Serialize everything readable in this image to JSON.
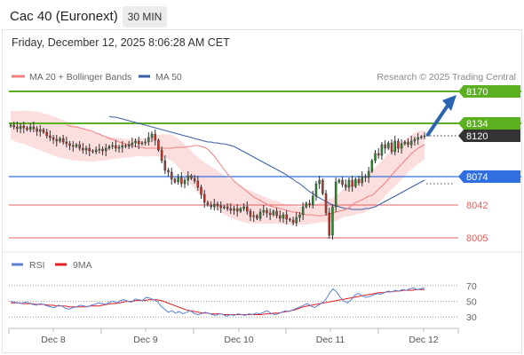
{
  "header": {
    "instrument": "Cac 40 (Euronext)",
    "timeframe": "30 MIN",
    "timestamp": "Friday, December 12, 2025 8:06:28 AM CET"
  },
  "legend": {
    "ma20_bb": "MA 20 + Bollinger Bands",
    "ma50": "MA 50",
    "ma20_color": "#f08080",
    "ma50_color": "#3b5fa6",
    "rsi": "RSI",
    "rsi_ma": "9MA",
    "rsi_color": "#5b7fd6",
    "rsi_ma_color": "#e02020"
  },
  "credit": "Research © 2025 Trading Central",
  "colors": {
    "resistance": "#5ab01e",
    "support": "#e06060",
    "pivot": "#2f6fe0",
    "current": "#333333",
    "arrow": "#2d64b0",
    "candle_up": "#2e8b2e",
    "candle_down": "#c0392b",
    "band_fill": "#fbd3d3"
  },
  "chart_data": [
    {
      "type": "candlestick",
      "x_ticks": [
        "Dec 8",
        "Dec 9",
        "Dec 10",
        "Dec 11",
        "Dec 12"
      ],
      "levels": [
        {
          "value": 8170,
          "label": "8170",
          "kind": "resistance"
        },
        {
          "value": 8134,
          "label": "8134",
          "kind": "resistance"
        },
        {
          "value": 8120,
          "label": "8120",
          "kind": "current"
        },
        {
          "value": 8074,
          "label": "8074",
          "kind": "pivot"
        },
        {
          "value": 8042,
          "label": "8042",
          "kind": "support"
        },
        {
          "value": 8005,
          "label": "8005",
          "kind": "support"
        }
      ],
      "ylim": [
        7998,
        8175
      ],
      "closes": [
        8132,
        8130,
        8128,
        8131,
        8129,
        8127,
        8130,
        8128,
        8125,
        8127,
        8124,
        8120,
        8118,
        8116,
        8114,
        8117,
        8113,
        8111,
        8109,
        8108,
        8110,
        8106,
        8104,
        8106,
        8103,
        8102,
        8104,
        8105,
        8103,
        8106,
        8108,
        8109,
        8106,
        8107,
        8109,
        8108,
        8110,
        8112,
        8114,
        8111,
        8112,
        8113,
        8118,
        8122,
        8115,
        8104,
        8092,
        8081,
        8079,
        8071,
        8068,
        8073,
        8066,
        8070,
        8075,
        8072,
        8069,
        8062,
        8054,
        8045,
        8042,
        8040,
        8043,
        8041,
        8039,
        8040,
        8038,
        8036,
        8038,
        8035,
        8038,
        8040,
        8035,
        8029,
        8030,
        8027,
        8034,
        8036,
        8033,
        8031,
        8035,
        8030,
        8027,
        8031,
        8026,
        8025,
        8022,
        8028,
        8031,
        8040,
        8044,
        8042,
        8052,
        8066,
        8070,
        8055,
        8033,
        8008,
        8040,
        8068,
        8070,
        8065,
        8062,
        8070,
        8063,
        8071,
        8067,
        8074,
        8073,
        8080,
        8092,
        8100,
        8098,
        8110,
        8106,
        8112,
        8102,
        8114,
        8106,
        8111,
        8113,
        8110,
        8114,
        8116,
        8118,
        8119,
        8120
      ],
      "ma20": [
        8132,
        8131,
        8130,
        8130,
        8129,
        8128,
        8127,
        8126,
        8125,
        8123,
        8122,
        8120,
        8119,
        8117,
        8116,
        8115,
        8113,
        8112,
        8111,
        8110,
        8109,
        8108,
        8107,
        8107,
        8106,
        8106,
        8106,
        8106,
        8106,
        8106,
        8106,
        8106,
        8106,
        8107,
        8107,
        8107,
        8107,
        8108,
        8108,
        8109,
        8109,
        8108,
        8107,
        8105,
        8101,
        8097,
        8092,
        8087,
        8082,
        8077,
        8073,
        8069,
        8066,
        8063,
        8060,
        8057,
        8054,
        8051,
        8049,
        8047,
        8045,
        8043,
        8041,
        8040,
        8039,
        8038,
        8037,
        8036,
        8035,
        8034,
        8034,
        8033,
        8032,
        8031,
        8031,
        8031,
        8030,
        8030,
        8030,
        8031,
        8032,
        8033,
        8034,
        8035,
        8036,
        8037,
        8039,
        8042,
        8045,
        8046,
        8048,
        8050,
        8052,
        8053,
        8056,
        8060,
        8063,
        8067,
        8071,
        8076,
        8080,
        8084,
        8088,
        8092,
        8096,
        8100,
        8103,
        8106,
        8108,
        8110
      ],
      "ma50": [
        8142,
        8141,
        8141,
        8140,
        8139,
        8138,
        8137,
        8136,
        8135,
        8134,
        8133,
        8132,
        8131,
        8130,
        8129,
        8128,
        8127,
        8126,
        8125,
        8124,
        8123,
        8122,
        8121,
        8120,
        8119,
        8118,
        8117,
        8116,
        8115,
        8114,
        8113,
        8113,
        8112,
        8112,
        8111,
        8111,
        8110,
        8109,
        8108,
        8106,
        8104,
        8102,
        8100,
        8098,
        8096,
        8094,
        8092,
        8090,
        8088,
        8086,
        8084,
        8082,
        8080,
        8078,
        8076,
        8073,
        8071,
        8068,
        8066,
        8063,
        8060,
        8057,
        8055,
        8052,
        8050,
        8048,
        8046,
        8044,
        8042,
        8041,
        8040,
        8039,
        8038,
        8038,
        8037,
        8037,
        8037,
        8037,
        8038,
        8038,
        8039,
        8040,
        8042,
        8044,
        8046,
        8048,
        8050,
        8052,
        8054,
        8056,
        8058,
        8060,
        8062,
        8064,
        8066,
        8068,
        8070
      ],
      "rsi_ylim": [
        20,
        80
      ],
      "rsi_levels": [
        70,
        50,
        30
      ],
      "rsi": [
        50,
        49,
        48,
        47,
        49,
        48,
        46,
        45,
        47,
        46,
        44,
        43,
        42,
        45,
        44,
        41,
        40,
        42,
        43,
        45,
        44,
        43,
        45,
        46,
        48,
        47,
        46,
        49,
        50,
        48,
        51,
        52,
        50,
        49,
        53,
        52,
        51,
        55,
        54,
        52,
        50,
        44,
        40,
        36,
        38,
        35,
        37,
        34,
        36,
        38,
        35,
        33,
        34,
        36,
        35,
        33,
        32,
        34,
        33,
        31,
        33,
        32,
        34,
        33,
        32,
        34,
        33,
        35,
        34,
        36,
        38,
        35,
        33,
        34,
        36,
        38,
        37,
        39,
        41,
        43,
        45,
        47,
        44,
        42,
        45,
        48,
        52,
        60,
        66,
        62,
        55,
        50,
        48,
        52,
        58,
        60,
        57,
        55,
        56,
        58,
        60,
        59,
        61,
        63,
        62,
        64,
        63,
        65,
        64,
        66,
        67,
        65,
        66,
        67
      ],
      "rsi_ma": [
        48,
        48,
        48,
        47,
        47,
        47,
        46,
        46,
        46,
        45,
        45,
        44,
        44,
        44,
        43,
        43,
        43,
        43,
        43,
        44,
        44,
        44,
        45,
        46,
        47,
        47,
        48,
        49,
        50,
        50,
        51,
        51,
        51,
        52,
        52,
        52,
        51,
        49,
        47,
        45,
        43,
        41,
        39,
        38,
        37,
        36,
        35,
        35,
        34,
        34,
        34,
        33,
        33,
        33,
        33,
        33,
        33,
        33,
        33,
        33,
        33,
        34,
        34,
        35,
        35,
        36,
        37,
        38,
        39,
        41,
        43,
        44,
        45,
        46,
        47,
        48,
        49,
        50,
        51,
        52,
        53,
        54,
        55,
        56,
        57,
        58,
        59,
        60,
        61,
        61,
        62,
        62,
        63,
        63,
        64,
        64,
        64,
        65,
        65,
        65
      ]
    }
  ]
}
